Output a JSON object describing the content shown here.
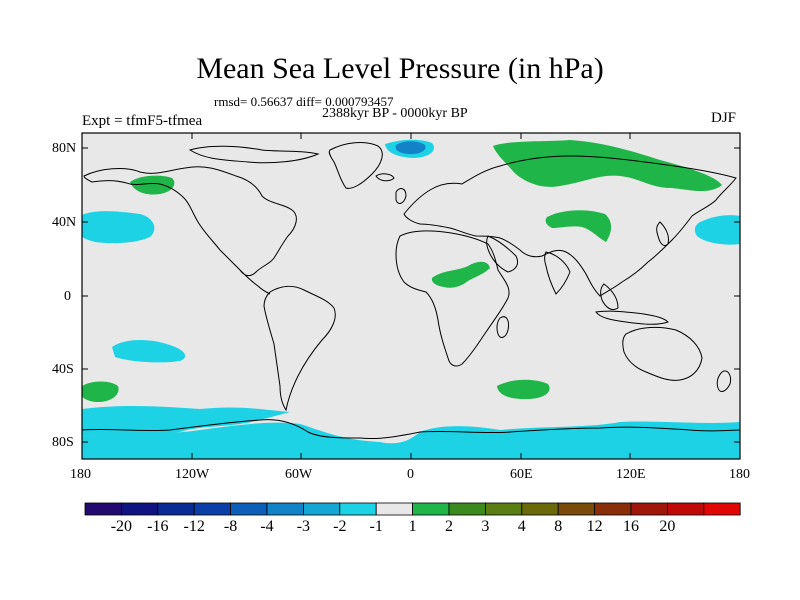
{
  "map": {
    "title": "Mean Sea Level Pressure (in hPa)",
    "stats": "rmsd= 0.56637 diff= 0.000793457",
    "period": "2388kyr BP - 0000kyr BP",
    "experiment": "Expt = tfmF5-tfmea",
    "season": "DJF",
    "lat_ticks": [
      "80N",
      "40N",
      "0",
      "40S",
      "80S"
    ],
    "lon_ticks": [
      "180",
      "120W",
      "60W",
      "0",
      "60E",
      "120E",
      "180"
    ],
    "background_color": "#e8e8e8",
    "coastline_color": "#000000"
  },
  "colorbar": {
    "colors": [
      "#230a6e",
      "#0f1480",
      "#0a2a96",
      "#0a3fa8",
      "#0c5fb8",
      "#1183c6",
      "#14a7d4",
      "#1ed2e6",
      "#e8e8e8",
      "#1fb548",
      "#3c8a1e",
      "#5a7d14",
      "#6a6a0a",
      "#7a4a0a",
      "#8a2e0a",
      "#a0160a",
      "#c00808",
      "#e00606"
    ],
    "labels": [
      "-20",
      "-16",
      "-12",
      "-8",
      "-4",
      "-3",
      "-2",
      "-1",
      "1",
      "2",
      "3",
      "4",
      "8",
      "12",
      "16",
      "20"
    ]
  }
}
